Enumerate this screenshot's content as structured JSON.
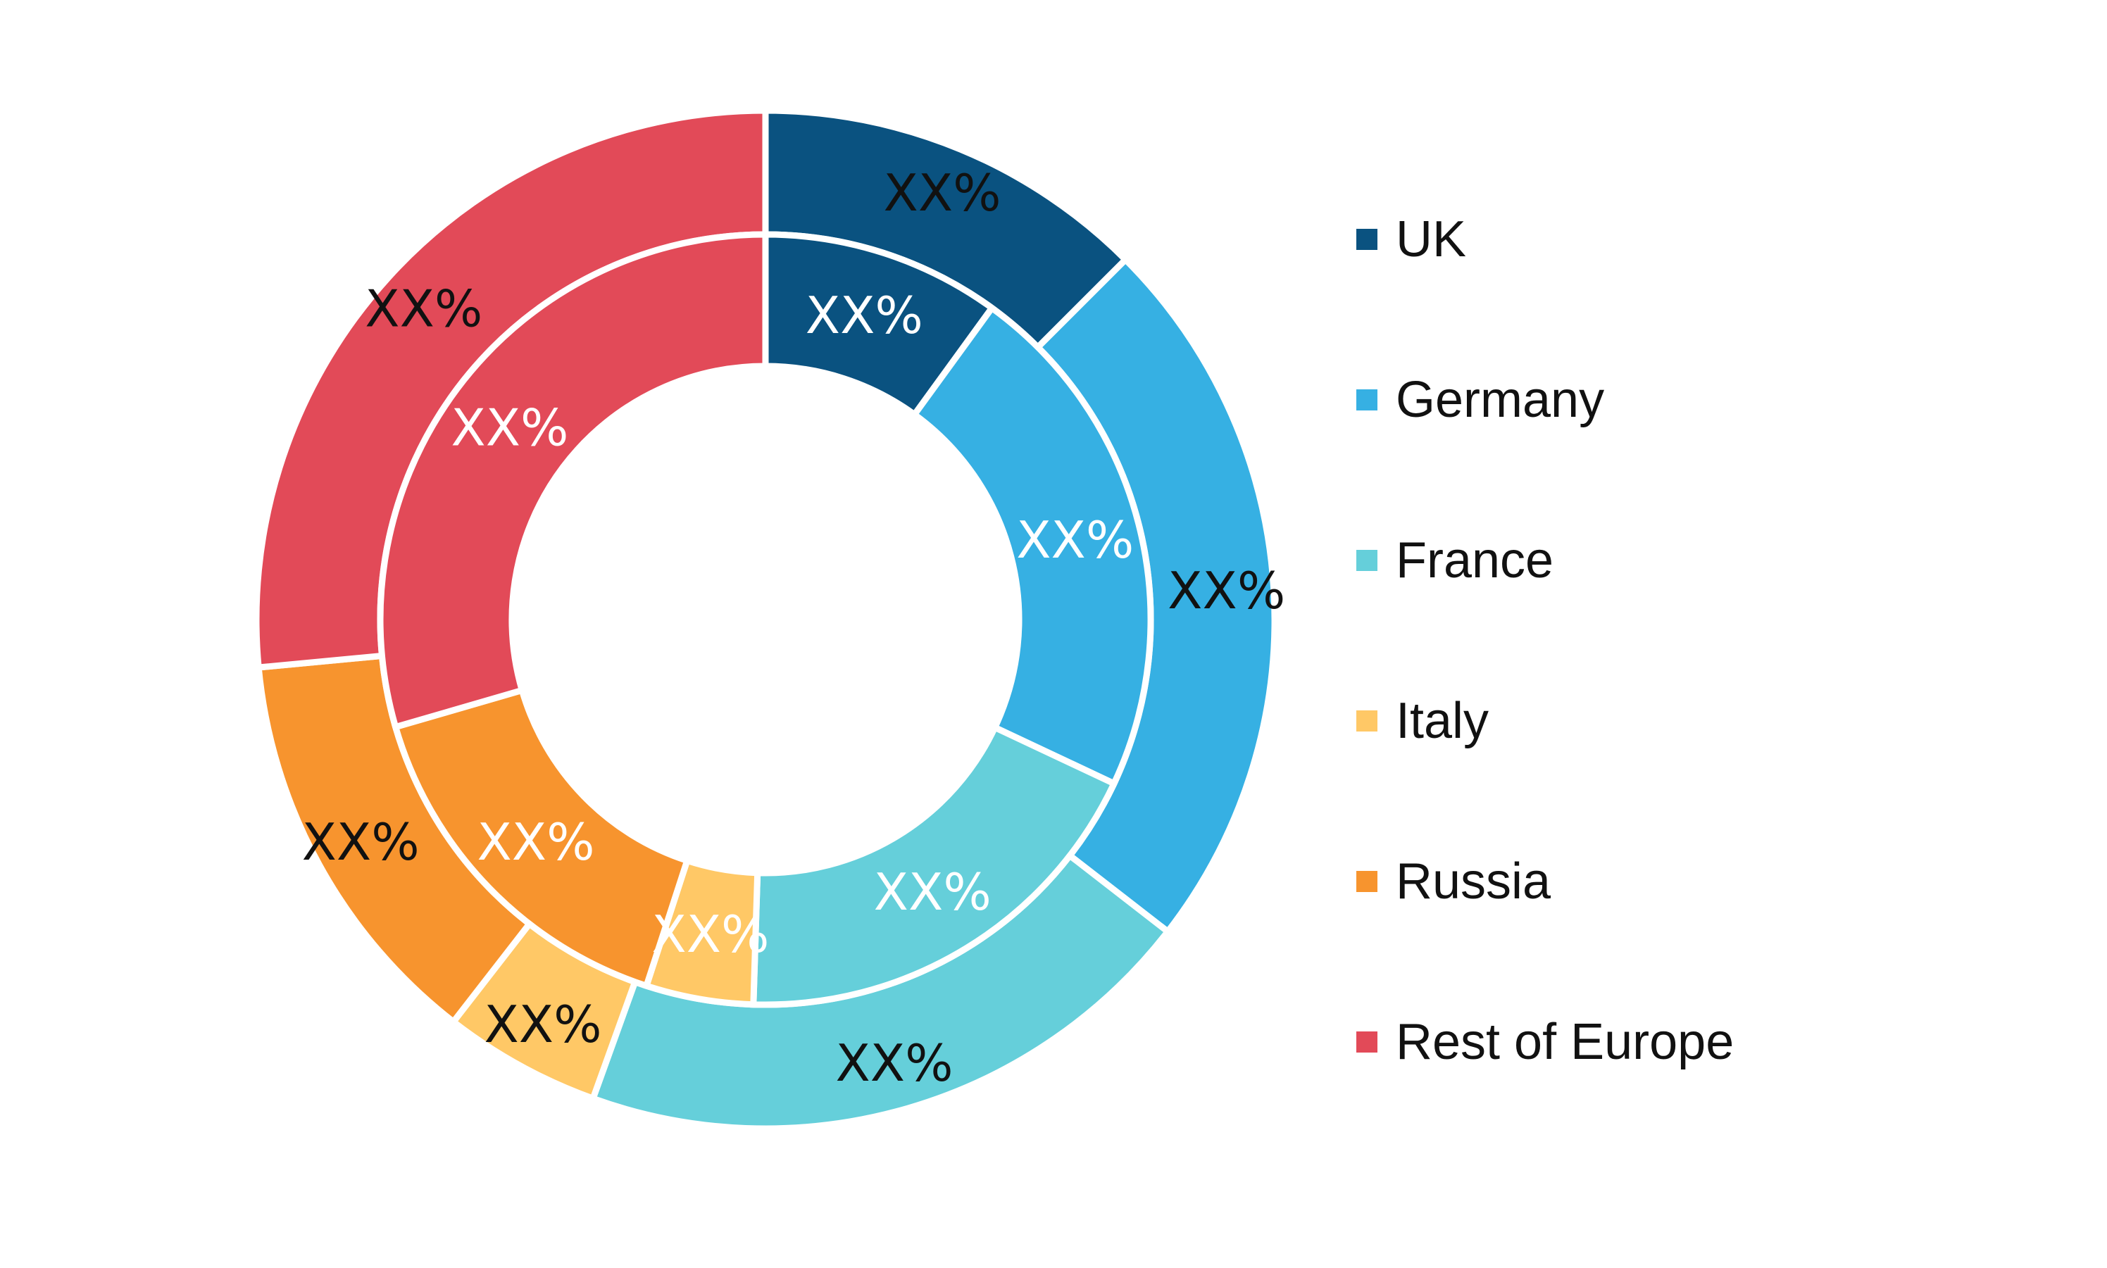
{
  "chart_data": {
    "type": "pie",
    "variant": "nested-donut",
    "legend_position": "right",
    "categories": [
      "UK",
      "Germany",
      "France",
      "Italy",
      "Russia",
      "Rest of Europe"
    ],
    "colors": [
      "#0A5280",
      "#36B0E3",
      "#65CFDA",
      "#FFC866",
      "#F7942E",
      "#E24A58"
    ],
    "series": [
      {
        "ring": "outer",
        "values": [
          12.5,
          23,
          20,
          5,
          13,
          26.5
        ],
        "labels": [
          "XX%",
          "XX%",
          "XX%",
          "XX%",
          "XX%",
          "XX%"
        ],
        "label_color": "#111111"
      },
      {
        "ring": "inner",
        "values": [
          10,
          22,
          18.5,
          4.5,
          15.5,
          29.5
        ],
        "labels": [
          "XX%",
          "XX%",
          "XX%",
          "XX%",
          "XX%",
          "XX%"
        ],
        "label_color": "#ffffff"
      }
    ]
  }
}
